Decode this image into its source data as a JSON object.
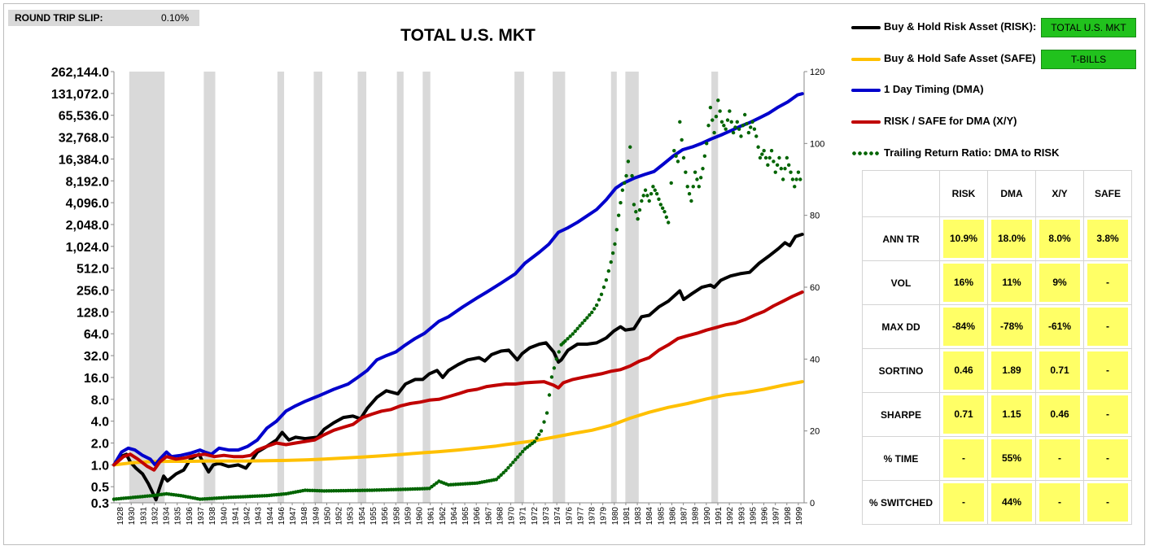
{
  "header": {
    "slip_label": "ROUND TRIP SLIP:",
    "slip_value": "0.10%"
  },
  "colors": {
    "risk": "#000000",
    "safe": "#ffc000",
    "dma": "#0000cc",
    "xy": "#c00000",
    "ratio": "#006400",
    "cell": "#ffff66",
    "badge": "#21c21d"
  },
  "legend": [
    {
      "label": "Buy & Hold Risk Asset (RISK):",
      "badge": "TOTAL U.S. MKT",
      "style": "line",
      "color": "#000000"
    },
    {
      "label": "Buy & Hold Safe Asset (SAFE)",
      "badge": "T-BILLS",
      "style": "line",
      "color": "#ffc000"
    },
    {
      "label": "1 Day Timing (DMA)",
      "style": "line",
      "color": "#0000cc"
    },
    {
      "label": "RISK / SAFE for DMA (X/Y)",
      "style": "line",
      "color": "#c00000"
    },
    {
      "label": "Trailing Return Ratio: DMA to RISK",
      "style": "dots",
      "color": "#006400"
    }
  ],
  "stats": {
    "columns": [
      "RISK",
      "DMA",
      "X/Y",
      "SAFE"
    ],
    "rows": [
      {
        "label": "ANN TR",
        "values": [
          "10.9%",
          "18.0%",
          "8.0%",
          "3.8%"
        ]
      },
      {
        "label": "VOL",
        "values": [
          "16%",
          "11%",
          "9%",
          "-"
        ]
      },
      {
        "label": "MAX DD",
        "values": [
          "-84%",
          "-78%",
          "-61%",
          "-"
        ]
      },
      {
        "label": "SORTINO",
        "values": [
          "0.46",
          "1.89",
          "0.71",
          "-"
        ]
      },
      {
        "label": "SHARPE",
        "values": [
          "0.71",
          "1.15",
          "0.46",
          "-"
        ]
      },
      {
        "label": "% TIME",
        "values": [
          "-",
          "55%",
          "-",
          "-"
        ]
      },
      {
        "label": "% SWITCHED",
        "values": [
          "-",
          "44%",
          "-",
          "-"
        ]
      }
    ]
  },
  "chart_data": {
    "type": "line",
    "title": "TOTAL U.S. MKT",
    "y_scale": "log2",
    "ylim": [
      0.3,
      262144
    ],
    "y_ticks": [
      0.3,
      0.5,
      1.0,
      2.0,
      4.0,
      8.0,
      16.0,
      32.0,
      64.0,
      128.0,
      256.0,
      512.0,
      1024.0,
      2048.0,
      4096.0,
      8192.0,
      16384.0,
      32768.0,
      65536.0,
      131072.0,
      262144.0
    ],
    "y_tick_labels": [
      "0.3",
      "0.5",
      "1.0",
      "2.0",
      "4.0",
      "8.0",
      "16.0",
      "32.0",
      "64.0",
      "128.0",
      "256.0",
      "512.0",
      "1,024.0",
      "2,048.0",
      "4,096.0",
      "8,192.0",
      "16,384.0",
      "32,768.0",
      "65,536.0",
      "131,072.0",
      "262,144.0"
    ],
    "y2lim": [
      0,
      120
    ],
    "y2_ticks": [
      0,
      20,
      40,
      60,
      80,
      100,
      120
    ],
    "xlim": [
      1928,
      2000.2
    ],
    "x_tick_labels": [
      "1928",
      "1930",
      "1931",
      "1932",
      "1934",
      "1935",
      "1936",
      "1937",
      "1938",
      "1940",
      "1941",
      "1942",
      "1943",
      "1944",
      "1946",
      "1947",
      "1948",
      "1949",
      "1950",
      "1952",
      "1953",
      "1954",
      "1955",
      "1956",
      "1958",
      "1959",
      "1960",
      "1961",
      "1962",
      "1964",
      "1965",
      "1966",
      "1967",
      "1968",
      "1970",
      "1971",
      "1972",
      "1973",
      "1974",
      "1976",
      "1977",
      "1978",
      "1979",
      "1980",
      "1981",
      "1983",
      "1984",
      "1985",
      "1986",
      "1987",
      "1989",
      "1990",
      "1991",
      "1992",
      "1993",
      "1995",
      "1996",
      "1997",
      "1998",
      "1999"
    ],
    "recessions": [
      [
        1929.6,
        1933.3
      ],
      [
        1937.4,
        1938.6
      ],
      [
        1945.1,
        1945.8
      ],
      [
        1948.9,
        1949.8
      ],
      [
        1953.5,
        1954.4
      ],
      [
        1957.6,
        1958.3
      ],
      [
        1960.3,
        1961.1
      ],
      [
        1969.9,
        1970.9
      ],
      [
        1973.9,
        1975.2
      ],
      [
        1980.0,
        1980.6
      ],
      [
        1981.5,
        1982.9
      ],
      [
        1990.5,
        1991.2
      ]
    ],
    "grid": false,
    "series": [
      {
        "name": "Buy & Hold Risk Asset (RISK)",
        "axis": "left",
        "color": "#000000",
        "x": [
          1928,
          1928.7,
          1929.3,
          1929.7,
          1930.3,
          1931.0,
          1931.6,
          1932.1,
          1932.4,
          1932.7,
          1933.2,
          1933.6,
          1934.5,
          1935.3,
          1936.0,
          1936.9,
          1937.3,
          1937.9,
          1938.4,
          1939.0,
          1940.0,
          1941.0,
          1941.8,
          1942.3,
          1943.0,
          1944.0,
          1945.0,
          1945.6,
          1946.3,
          1947.0,
          1948.0,
          1949.3,
          1950.0,
          1951.0,
          1952.0,
          1953.0,
          1953.8,
          1954.5,
          1955.5,
          1956.5,
          1957.7,
          1958.5,
          1959.5,
          1960.3,
          1961.0,
          1961.8,
          1962.4,
          1963.0,
          1964.0,
          1965.0,
          1966.2,
          1966.8,
          1967.5,
          1968.5,
          1969.3,
          1970.2,
          1970.7,
          1971.5,
          1972.5,
          1973.2,
          1974.0,
          1974.5,
          1974.8,
          1975.5,
          1976.5,
          1977.5,
          1978.5,
          1979.5,
          1980.3,
          1981.0,
          1981.5,
          1982.4,
          1983.2,
          1984.0,
          1985.0,
          1986.0,
          1987.2,
          1987.6,
          1988.5,
          1989.5,
          1990.4,
          1990.8,
          1991.5,
          1992.5,
          1993.5,
          1994.5,
          1995.5,
          1996.5,
          1997.5,
          1998.2,
          1998.7,
          1999.3,
          2000.0
        ],
        "y": [
          1.0,
          1.3,
          1.4,
          1.1,
          0.9,
          0.75,
          0.55,
          0.4,
          0.33,
          0.45,
          0.7,
          0.6,
          0.75,
          0.85,
          1.2,
          1.4,
          1.1,
          0.8,
          1.0,
          1.05,
          0.95,
          1.0,
          0.9,
          1.1,
          1.5,
          1.8,
          2.2,
          2.8,
          2.2,
          2.4,
          2.3,
          2.4,
          3.1,
          3.8,
          4.5,
          4.7,
          4.3,
          6.0,
          8.5,
          10.5,
          9.5,
          13.0,
          15.0,
          15.0,
          18.0,
          20.0,
          16.0,
          20.0,
          24.0,
          28.0,
          30.0,
          27.0,
          33.0,
          37.0,
          38.0,
          28.0,
          34.0,
          41.0,
          46.0,
          48.0,
          36.0,
          26.0,
          28.0,
          38.0,
          46.0,
          46.0,
          48.0,
          56.0,
          70.0,
          80.0,
          72.0,
          75.0,
          110.0,
          115.0,
          150.0,
          180.0,
          250.0,
          190.0,
          230.0,
          280.0,
          300.0,
          280.0,
          350.0,
          400.0,
          430.0,
          450.0,
          600.0,
          750.0,
          950.0,
          1150.0,
          1050.0,
          1400.0,
          1500.0
        ]
      },
      {
        "name": "Buy & Hold Safe Asset (SAFE)",
        "axis": "left",
        "color": "#ffc000",
        "x": [
          1928,
          1930,
          1932,
          1934,
          1936,
          1938,
          1940,
          1942,
          1944,
          1946,
          1948,
          1950,
          1952,
          1954,
          1956,
          1958,
          1960,
          1962,
          1964,
          1966,
          1968,
          1970,
          1972,
          1974,
          1976,
          1978,
          1980,
          1982,
          1984,
          1986,
          1988,
          1990,
          1992,
          1994,
          1996,
          1998,
          2000
        ],
        "y": [
          1.0,
          1.07,
          1.11,
          1.12,
          1.12,
          1.13,
          1.13,
          1.13,
          1.14,
          1.15,
          1.17,
          1.2,
          1.24,
          1.28,
          1.33,
          1.39,
          1.46,
          1.52,
          1.6,
          1.7,
          1.82,
          1.98,
          2.15,
          2.4,
          2.7,
          3.0,
          3.5,
          4.4,
          5.3,
          6.2,
          7.0,
          8.1,
          9.2,
          9.9,
          11.0,
          12.5,
          14.0
        ]
      },
      {
        "name": "1 Day Timing (DMA)",
        "axis": "left",
        "color": "#0000cc",
        "x": [
          1928,
          1928.8,
          1929.5,
          1930.2,
          1931.0,
          1931.8,
          1932.3,
          1932.8,
          1933.5,
          1934.0,
          1935.0,
          1936.0,
          1937.0,
          1937.5,
          1938.2,
          1939.0,
          1940.0,
          1941.0,
          1942.0,
          1943.0,
          1944.0,
          1945.0,
          1946.0,
          1947.0,
          1948.0,
          1949.5,
          1951.0,
          1952.5,
          1953.5,
          1954.5,
          1955.5,
          1956.5,
          1957.5,
          1958.5,
          1959.5,
          1960.5,
          1962.0,
          1963.0,
          1964.5,
          1966.0,
          1967.0,
          1968.5,
          1970.0,
          1971.0,
          1972.5,
          1973.5,
          1974.5,
          1975.5,
          1976.5,
          1977.5,
          1978.5,
          1979.5,
          1980.5,
          1981.2,
          1982.5,
          1983.5,
          1984.5,
          1985.5,
          1986.5,
          1987.5,
          1988.5,
          1989.5,
          1990.5,
          1991.5,
          1992.5,
          1993.5,
          1994.5,
          1995.5,
          1996.5,
          1997.5,
          1998.5,
          1999.5,
          2000.0
        ],
        "y": [
          1.0,
          1.5,
          1.7,
          1.6,
          1.35,
          1.2,
          1.0,
          1.2,
          1.5,
          1.3,
          1.35,
          1.45,
          1.6,
          1.5,
          1.4,
          1.7,
          1.6,
          1.6,
          1.8,
          2.2,
          3.2,
          4.0,
          5.5,
          6.5,
          7.5,
          9.0,
          11.0,
          13.0,
          16.0,
          20.0,
          28.0,
          32.0,
          36.0,
          45.0,
          55.0,
          65.0,
          95.0,
          110.0,
          150.0,
          200.0,
          240.0,
          320.0,
          430.0,
          600.0,
          850.0,
          1100.0,
          1600.0,
          1850.0,
          2200.0,
          2700.0,
          3300.0,
          4500.0,
          6500.0,
          7500.0,
          9000.0,
          10000.0,
          11000.0,
          14000.0,
          18000.0,
          22000.0,
          24000.0,
          27000.0,
          31000.0,
          35000.0,
          40000.0,
          46000.0,
          52000.0,
          60000.0,
          70000.0,
          85000.0,
          100000.0,
          125000.0,
          130000.0
        ]
      },
      {
        "name": "RISK / SAFE for DMA (X/Y)",
        "axis": "left",
        "color": "#c00000",
        "x": [
          1928,
          1929.0,
          1929.7,
          1930.5,
          1931.5,
          1932.2,
          1932.8,
          1933.5,
          1934.5,
          1935.5,
          1936.5,
          1937.5,
          1938.5,
          1939.5,
          1940.5,
          1941.5,
          1942.3,
          1943.0,
          1944.0,
          1945.0,
          1946.0,
          1947.0,
          1948.0,
          1949.0,
          1950.0,
          1951.0,
          1952.0,
          1953.0,
          1954.0,
          1955.0,
          1956.0,
          1957.0,
          1958.0,
          1959.0,
          1960.0,
          1961.0,
          1962.0,
          1963.0,
          1964.0,
          1965.0,
          1966.0,
          1967.0,
          1968.0,
          1969.0,
          1970.0,
          1971.0,
          1972.0,
          1973.0,
          1974.0,
          1974.5,
          1975.0,
          1976.0,
          1977.0,
          1978.0,
          1979.0,
          1980.0,
          1981.0,
          1982.0,
          1983.0,
          1984.0,
          1985.0,
          1986.0,
          1987.0,
          1988.0,
          1989.0,
          1990.0,
          1991.0,
          1992.0,
          1993.0,
          1994.0,
          1995.0,
          1996.0,
          1997.0,
          1998.0,
          1999.0,
          2000.0
        ],
        "y": [
          1.0,
          1.3,
          1.4,
          1.2,
          0.95,
          0.85,
          1.1,
          1.3,
          1.2,
          1.25,
          1.35,
          1.4,
          1.3,
          1.35,
          1.3,
          1.3,
          1.35,
          1.6,
          1.8,
          2.0,
          1.9,
          2.0,
          2.1,
          2.2,
          2.6,
          3.0,
          3.3,
          3.6,
          4.5,
          5.0,
          5.5,
          5.8,
          6.5,
          7.0,
          7.3,
          7.8,
          8.0,
          8.7,
          9.5,
          10.5,
          11.0,
          12.0,
          12.5,
          13.0,
          13.0,
          13.5,
          13.8,
          14.0,
          12.5,
          11.5,
          13.5,
          15.0,
          16.0,
          17.0,
          18.0,
          19.5,
          20.5,
          23.0,
          27.0,
          30.0,
          38.0,
          45.0,
          55.0,
          60.0,
          65.0,
          72.0,
          78.0,
          85.0,
          90.0,
          100.0,
          115.0,
          130.0,
          155.0,
          180.0,
          210.0,
          240.0
        ]
      },
      {
        "name": "Trailing Return Ratio: DMA to RISK",
        "axis": "right",
        "style": "dots",
        "color": "#006400",
        "x": [
          1928,
          1930.0,
          1932.0,
          1933.5,
          1935.0,
          1937.0,
          1940.0,
          1944.0,
          1946.0,
          1948.0,
          1950.0,
          1955.0,
          1959.0,
          1961.0,
          1962.0,
          1963.0,
          1966.0,
          1968.0,
          1969.0,
          1970.0,
          1971.0,
          1972.0,
          1972.7,
          1973.3,
          1973.8,
          1974.3,
          1974.8,
          1975.2,
          1976.0,
          1977.0,
          1978.0,
          1978.5,
          1979.0,
          1979.5,
          1980.0,
          1980.4,
          1980.8,
          1981.2,
          1981.6,
          1982.0,
          1982.4,
          1982.8,
          1983.2,
          1983.6,
          1984.0,
          1984.4,
          1984.8,
          1985.2,
          1985.6,
          1986.0,
          1986.3,
          1986.6,
          1987.0,
          1987.2,
          1987.6,
          1988.0,
          1988.4,
          1988.8,
          1989.2,
          1989.6,
          1990.0,
          1990.4,
          1990.8,
          1991.2,
          1991.6,
          1992.0,
          1992.4,
          1992.8,
          1993.2,
          1993.6,
          1994.0,
          1994.4,
          1994.8,
          1995.2,
          1995.6,
          1996.0,
          1996.4,
          1996.8,
          1997.2,
          1997.6,
          1998.0,
          1998.4,
          1998.8,
          1999.2,
          1999.6,
          2000.0
        ],
        "y": [
          1,
          1.5,
          2,
          2.5,
          2,
          1,
          1.5,
          2,
          2.5,
          3.5,
          3.3,
          3.5,
          3.8,
          4,
          6,
          5,
          5.5,
          6.5,
          9,
          12,
          15,
          17,
          20,
          25,
          35,
          40,
          44,
          45,
          47,
          50,
          53,
          55,
          58,
          62,
          67,
          72,
          80,
          87,
          91,
          99,
          83,
          79,
          84,
          87,
          84,
          88,
          86,
          83,
          81,
          78,
          89,
          98,
          95,
          106,
          96,
          88,
          84,
          92,
          88,
          93,
          100,
          110,
          103,
          112,
          106,
          104,
          109,
          103,
          106,
          102,
          108,
          103,
          106,
          102,
          96,
          98,
          94,
          98,
          92,
          96,
          90,
          96,
          92,
          88,
          92,
          88
        ]
      }
    ]
  }
}
